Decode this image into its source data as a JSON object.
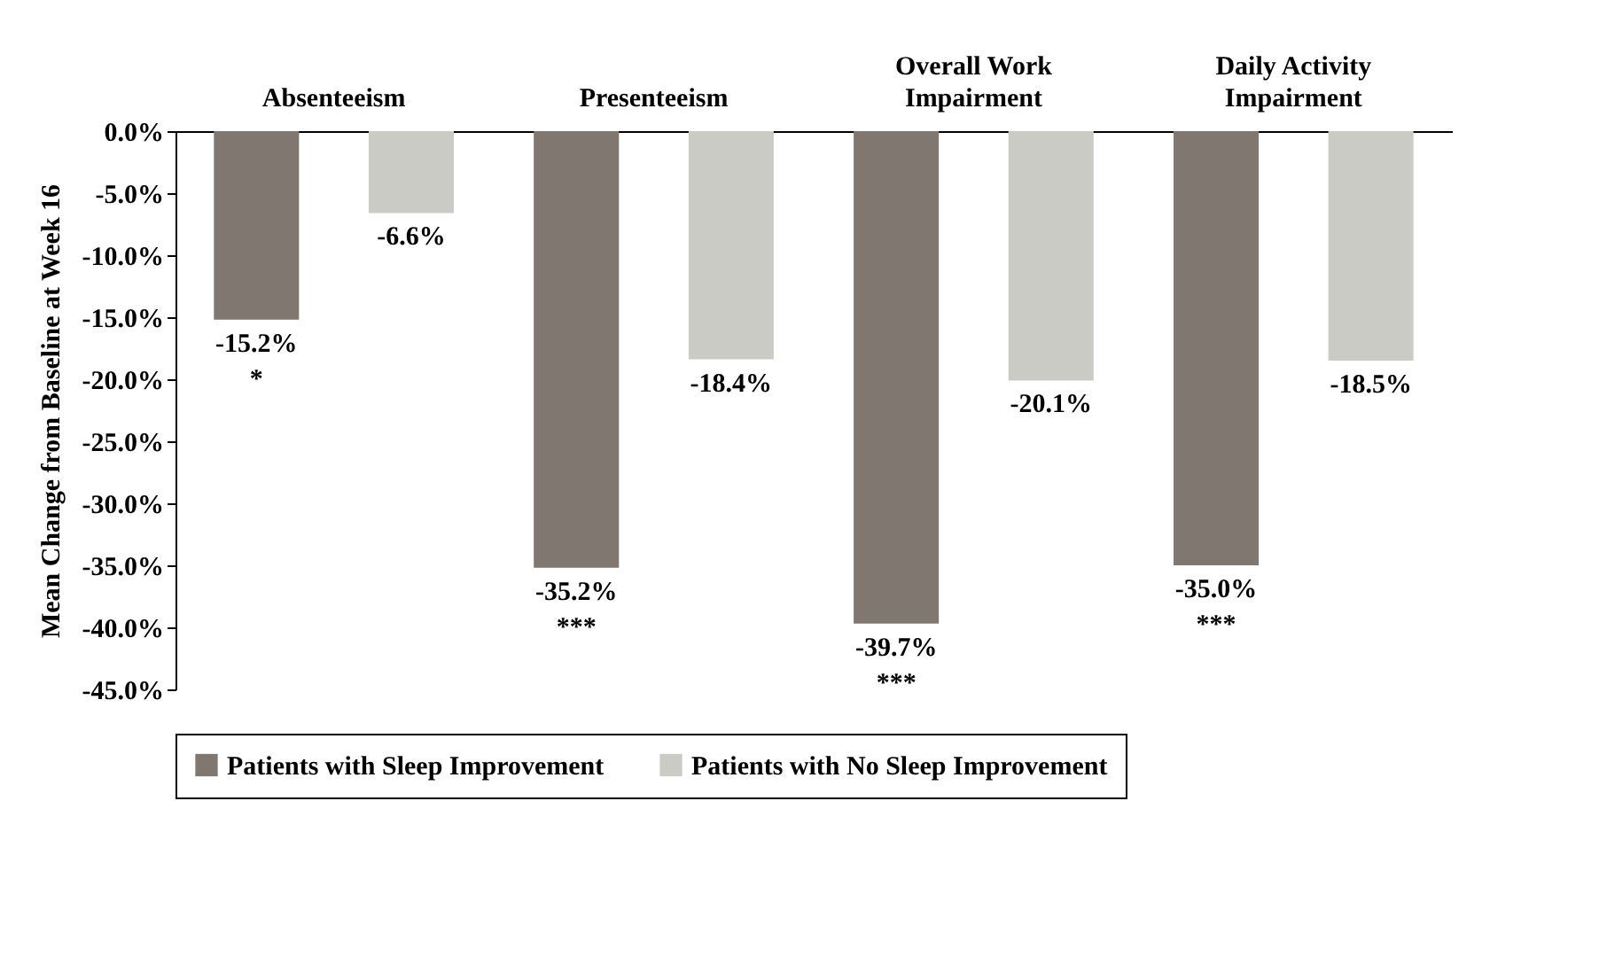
{
  "chart_data": {
    "type": "bar",
    "ylabel": "Mean Change from Baseline at Week 16",
    "categories": [
      "Absenteeism",
      "Presenteeism",
      "Overall Work Impairment",
      "Daily Activity Impairment"
    ],
    "series": [
      {
        "name": "Patients with Sleep Improvement",
        "color": "#7f7770",
        "values": [
          -15.2,
          -35.2,
          -39.7,
          -35.0
        ],
        "value_labels": [
          "-15.2%",
          "-35.2%",
          "-39.7%",
          "-35.0%"
        ]
      },
      {
        "name": "Patients with No Sleep Improvement",
        "color": "#cbcbc5",
        "values": [
          -6.6,
          -18.4,
          -20.1,
          -18.5
        ],
        "value_labels": [
          "-6.6%",
          "-18.4%",
          "-20.1%",
          "-18.5%"
        ]
      }
    ],
    "ylim": [
      -45,
      0
    ],
    "yticks": [
      {
        "value": 0,
        "label": "0.0%"
      },
      {
        "value": -5,
        "label": "-5.0%"
      },
      {
        "value": -10,
        "label": "-10.0%"
      },
      {
        "value": -15,
        "label": "-15.0%"
      },
      {
        "value": -20,
        "label": "-20.0%"
      },
      {
        "value": -25,
        "label": "-25.0%"
      },
      {
        "value": -30,
        "label": "-30.0%"
      },
      {
        "value": -35,
        "label": "-35.0%"
      },
      {
        "value": -40,
        "label": "-40.0%"
      },
      {
        "value": -45,
        "label": "-45.0%"
      }
    ],
    "annotations": [
      "*",
      "***",
      "***",
      "***"
    ],
    "grid": false,
    "legend": "bottom"
  }
}
